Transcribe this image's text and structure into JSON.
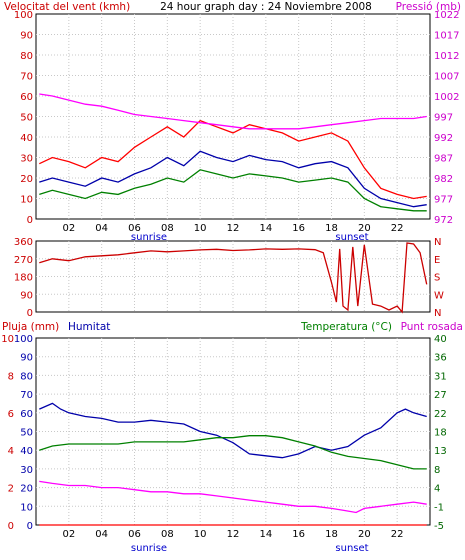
{
  "header": {
    "wind_label": "Velocitat del vent (kmh)",
    "title": "24 hour graph day : 24 Noviembre 2008",
    "pressure_label": "Pressió (mb)"
  },
  "colors": {
    "red": "#ff0000",
    "dark_red": "#cc0000",
    "blue": "#0000ff",
    "navy": "#0000aa",
    "green": "#008000",
    "dark_green": "#006600",
    "magenta": "#ff00ff",
    "background": "#ffffff"
  },
  "sun_labels": {
    "sunrise": "sunrise",
    "sunset": "sunset"
  },
  "chart_data": [
    {
      "type": "line",
      "name": "wind-pressure",
      "x_ticks": [
        "02",
        "04",
        "06",
        "08",
        "10",
        "12",
        "14",
        "16",
        "18",
        "20",
        "22"
      ],
      "y_left": {
        "label": "Velocitat del vent (kmh)",
        "range": [
          0,
          100
        ],
        "ticks": [
          "0",
          "10",
          "20",
          "30",
          "40",
          "50",
          "60",
          "70",
          "80",
          "90",
          "100"
        ]
      },
      "y_right": {
        "label": "Pressió (mb)",
        "range": [
          972,
          1022
        ],
        "ticks": [
          "972",
          "977",
          "982",
          "987",
          "992",
          "997",
          "1002",
          "1007",
          "1012",
          "1017",
          "1022"
        ]
      },
      "series": [
        {
          "key": "gust",
          "color": "#ff0000",
          "x": [
            0.2,
            1,
            2,
            3,
            4,
            5,
            6,
            7,
            8,
            9,
            10,
            11,
            12,
            13,
            14,
            15,
            16,
            17,
            18,
            19,
            20,
            21,
            22,
            23,
            23.8
          ],
          "y": [
            27,
            30,
            28,
            25,
            30,
            28,
            35,
            40,
            45,
            40,
            48,
            45,
            42,
            46,
            44,
            42,
            38,
            40,
            42,
            38,
            25,
            15,
            12,
            10,
            11
          ]
        },
        {
          "key": "wind_avg",
          "color": "#0000aa",
          "x": [
            0.2,
            1,
            2,
            3,
            4,
            5,
            6,
            7,
            8,
            9,
            10,
            11,
            12,
            13,
            14,
            15,
            16,
            17,
            18,
            19,
            20,
            21,
            22,
            23,
            23.8
          ],
          "y": [
            18,
            20,
            18,
            16,
            20,
            18,
            22,
            25,
            30,
            26,
            33,
            30,
            28,
            31,
            29,
            28,
            25,
            27,
            28,
            25,
            15,
            10,
            8,
            6,
            7
          ]
        },
        {
          "key": "wind_min",
          "color": "#008000",
          "x": [
            0.2,
            1,
            2,
            3,
            4,
            5,
            6,
            7,
            8,
            9,
            10,
            11,
            12,
            13,
            14,
            15,
            16,
            17,
            18,
            19,
            20,
            21,
            22,
            23,
            23.8
          ],
          "y": [
            12,
            14,
            12,
            10,
            13,
            12,
            15,
            17,
            20,
            18,
            24,
            22,
            20,
            22,
            21,
            20,
            18,
            19,
            20,
            18,
            10,
            6,
            5,
            4,
            4
          ]
        },
        {
          "key": "pressure",
          "color": "#ff00ff",
          "axis": "right",
          "x": [
            0.2,
            1,
            2,
            3,
            4,
            5,
            6,
            7,
            8,
            9,
            10,
            11,
            12,
            13,
            14,
            15,
            16,
            17,
            18,
            19,
            20,
            21,
            22,
            23,
            23.8
          ],
          "y": [
            1002.5,
            1002,
            1001,
            1000,
            999.5,
            998.5,
            997.5,
            997,
            996.5,
            996,
            995.5,
            995,
            994.5,
            994,
            994,
            994,
            994,
            994.5,
            995,
            995.5,
            996,
            996.5,
            996.5,
            996.5,
            997
          ]
        }
      ]
    },
    {
      "type": "line",
      "name": "wind-direction",
      "y_left": {
        "range": [
          0,
          360
        ],
        "ticks": [
          "0",
          "90",
          "180",
          "270",
          "360"
        ]
      },
      "y_right": {
        "ticks": [
          "N",
          "W",
          "S",
          "E",
          "N"
        ]
      },
      "series": [
        {
          "key": "direction",
          "color": "#cc0000",
          "x": [
            0.2,
            1,
            2,
            3,
            4,
            5,
            6,
            7,
            8,
            9,
            10,
            11,
            12,
            13,
            14,
            15,
            16,
            17,
            17.5,
            18,
            18.3,
            18.5,
            18.7,
            19,
            19.3,
            19.6,
            20,
            20.5,
            21,
            21.5,
            22,
            22.3,
            22.6,
            23,
            23.4,
            23.8
          ],
          "y": [
            250,
            270,
            260,
            280,
            285,
            290,
            300,
            310,
            305,
            310,
            315,
            318,
            312,
            315,
            320,
            318,
            320,
            316,
            300,
            150,
            50,
            320,
            30,
            10,
            330,
            30,
            340,
            40,
            30,
            10,
            30,
            0,
            350,
            345,
            300,
            140
          ]
        }
      ]
    },
    {
      "type": "line",
      "name": "rain-humidity-temperature",
      "x_ticks": [
        "02",
        "04",
        "06",
        "08",
        "10",
        "12",
        "14",
        "16",
        "18",
        "20",
        "22"
      ],
      "y_left": {
        "labels": [
          "Pluja (mm)",
          "Humitat"
        ],
        "ticks_red": [
          "0",
          "2",
          "4",
          "6",
          "8",
          "10"
        ],
        "ticks_blue": [
          "10",
          "20",
          "30",
          "40",
          "50",
          "60",
          "70",
          "80",
          "90",
          "100"
        ]
      },
      "y_right": {
        "labels": [
          "Temperatura (°C)",
          "Punt rosada"
        ],
        "range": [
          -5,
          40
        ],
        "ticks": [
          "-5",
          "-1",
          "4",
          "8",
          "13",
          "18",
          "22",
          "27",
          "31",
          "36",
          "40"
        ]
      },
      "series": [
        {
          "key": "rain",
          "color": "#ff0000",
          "x": [
            0.2,
            23.8
          ],
          "y": [
            0,
            0
          ]
        },
        {
          "key": "humidity",
          "color": "#0000aa",
          "x": [
            0.2,
            1,
            1.5,
            2,
            3,
            4,
            5,
            6,
            7,
            8,
            9,
            10,
            11,
            12,
            13,
            14,
            15,
            16,
            17,
            18,
            19,
            20,
            21,
            22,
            22.5,
            23,
            23.8
          ],
          "y": [
            62,
            65,
            62,
            60,
            58,
            57,
            55,
            55,
            56,
            55,
            54,
            50,
            48,
            44,
            38,
            37,
            36,
            38,
            42,
            40,
            42,
            48,
            52,
            60,
            62,
            60,
            58
          ]
        },
        {
          "key": "temperature",
          "color": "#008000",
          "x": [
            0.2,
            1,
            2,
            3,
            4,
            5,
            6,
            7,
            8,
            9,
            10,
            11,
            12,
            13,
            14,
            15,
            16,
            17,
            18,
            19,
            20,
            21,
            22,
            23,
            23.8
          ],
          "y": [
            13,
            14,
            14.5,
            14.5,
            14.5,
            14.5,
            15,
            15,
            15,
            15,
            15.5,
            16,
            16,
            16.5,
            16.5,
            16,
            15,
            14,
            12.5,
            11.5,
            11,
            10.5,
            9.5,
            8.5,
            8.5
          ]
        },
        {
          "key": "dew_point",
          "color": "#ff00ff",
          "x": [
            0.2,
            1,
            2,
            3,
            4,
            5,
            6,
            7,
            8,
            9,
            10,
            11,
            12,
            13,
            14,
            15,
            16,
            17,
            18,
            18.8,
            19.5,
            20,
            21,
            22,
            23,
            23.8
          ],
          "y": [
            5.5,
            5,
            4.5,
            4.5,
            4,
            4,
            3.5,
            3,
            3,
            2.5,
            2.5,
            2,
            1.5,
            1,
            0.5,
            0,
            -0.5,
            -0.5,
            -1,
            -1.5,
            -2,
            -1,
            -0.5,
            0,
            0.5,
            0
          ]
        }
      ]
    }
  ]
}
